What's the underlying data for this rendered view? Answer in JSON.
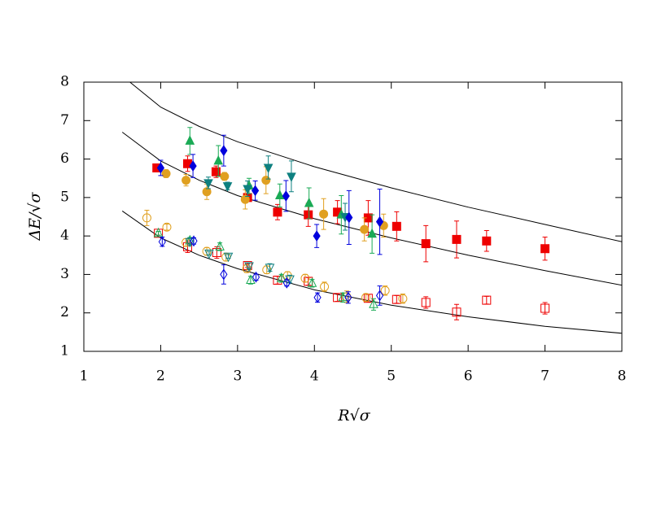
{
  "chart_data": {
    "type": "scatter",
    "x_label": "R√σ",
    "y_label": "ΔE/√σ",
    "xlim": [
      1,
      8
    ],
    "ylim": [
      1,
      8
    ],
    "xticks": [
      1,
      2,
      3,
      4,
      5,
      6,
      7,
      8
    ],
    "yticks": [
      1,
      2,
      3,
      4,
      5,
      6,
      7,
      8
    ],
    "curves": [
      {
        "color": "#000000",
        "x": [
          1.6,
          2,
          2.5,
          3,
          4,
          5,
          6,
          7,
          8
        ],
        "values": [
          8.0,
          7.35,
          6.85,
          6.45,
          5.8,
          5.25,
          4.75,
          4.3,
          3.85
        ]
      },
      {
        "color": "#000000",
        "x": [
          1.5,
          2,
          2.5,
          3,
          4,
          5,
          6,
          7,
          8
        ],
        "values": [
          6.7,
          5.95,
          5.45,
          5.05,
          4.45,
          3.95,
          3.5,
          3.1,
          2.72
        ]
      },
      {
        "color": "#000000",
        "x": [
          1.5,
          2,
          2.5,
          3,
          4,
          5,
          6,
          7,
          8
        ],
        "values": [
          4.65,
          3.95,
          3.5,
          3.15,
          2.6,
          2.2,
          1.9,
          1.65,
          1.47
        ]
      }
    ],
    "series": [
      {
        "color": "#ee0000",
        "marker": "square",
        "filled": true,
        "x": [
          1.95,
          2.35,
          2.72,
          3.13,
          3.52,
          3.92,
          4.3,
          4.7,
          5.07,
          5.45,
          5.85,
          6.24,
          7.0
        ],
        "values": [
          5.77,
          5.88,
          5.67,
          5.0,
          4.62,
          4.55,
          4.62,
          4.47,
          4.25,
          3.8,
          3.91,
          3.87,
          3.67
        ],
        "errors": [
          0.05,
          0.2,
          0.15,
          0.1,
          0.2,
          0.3,
          0.3,
          0.45,
          0.38,
          0.47,
          0.48,
          0.27,
          0.3
        ]
      },
      {
        "color": "#e0a020",
        "marker": "circle",
        "filled": true,
        "x": [
          2.07,
          2.33,
          2.6,
          2.83,
          3.1,
          3.37,
          4.12,
          4.65,
          4.9
        ],
        "values": [
          5.62,
          5.45,
          5.15,
          5.55,
          4.95,
          5.45,
          4.57,
          4.17,
          4.27
        ],
        "errors": [
          0.1,
          0.15,
          0.2,
          0.1,
          0.25,
          0.35,
          0.4,
          0.3,
          0.3
        ]
      },
      {
        "color": "#1aaa55",
        "marker": "triangle-up",
        "filled": true,
        "x": [
          2.38,
          2.75,
          3.15,
          3.55,
          3.93,
          4.35,
          4.75
        ],
        "values": [
          6.47,
          5.95,
          5.3,
          5.05,
          4.85,
          4.55,
          4.05
        ],
        "errors": [
          0.35,
          0.4,
          0.2,
          0.3,
          0.4,
          0.5,
          0.5
        ]
      },
      {
        "color": "#0e8080",
        "marker": "triangle-down",
        "filled": true,
        "x": [
          2.62,
          2.87,
          3.13,
          3.4,
          3.7,
          4.4
        ],
        "values": [
          5.38,
          5.3,
          5.23,
          5.78,
          5.55,
          4.5
        ],
        "errors": [
          0.15,
          0.1,
          0.2,
          0.3,
          0.4,
          0.35
        ]
      },
      {
        "color": "#0000dd",
        "marker": "diamond",
        "filled": true,
        "x": [
          2.0,
          2.42,
          2.82,
          3.23,
          3.63,
          4.03,
          4.45,
          4.85
        ],
        "values": [
          5.77,
          5.82,
          6.22,
          5.18,
          5.04,
          4.0,
          4.48,
          4.37
        ],
        "errors": [
          0.2,
          0.3,
          0.4,
          0.25,
          0.4,
          0.3,
          0.7,
          0.85
        ]
      },
      {
        "color": "#ee0000",
        "marker": "square",
        "filled": false,
        "x": [
          1.97,
          2.35,
          2.73,
          3.13,
          3.52,
          3.92,
          4.3,
          4.7,
          5.07,
          5.45,
          5.85,
          6.24,
          7.0
        ],
        "values": [
          4.07,
          3.72,
          3.57,
          3.23,
          2.85,
          2.82,
          2.4,
          2.38,
          2.35,
          2.27,
          2.02,
          2.33,
          2.12
        ],
        "errors": [
          0.05,
          0.15,
          0.15,
          0.05,
          0.1,
          0.1,
          0.1,
          0.1,
          0.1,
          0.15,
          0.2,
          0.1,
          0.15
        ]
      },
      {
        "color": "#e0a020",
        "marker": "circle",
        "filled": false,
        "x": [
          1.82,
          2.08,
          2.33,
          2.6,
          2.85,
          3.12,
          3.38,
          3.65,
          3.88,
          4.13,
          4.42,
          4.67,
          4.92,
          5.15
        ],
        "values": [
          4.47,
          4.23,
          3.83,
          3.6,
          3.45,
          3.15,
          3.12,
          2.97,
          2.9,
          2.68,
          2.42,
          2.4,
          2.58,
          2.37
        ],
        "errors": [
          0.2,
          0.08,
          0.1,
          0.1,
          0.1,
          0.1,
          0.1,
          0.1,
          0.1,
          0.12,
          0.15,
          0.1,
          0.12,
          0.12
        ]
      },
      {
        "color": "#1aaa55",
        "marker": "triangle-up",
        "filled": false,
        "x": [
          1.97,
          2.38,
          2.77,
          3.17,
          3.57,
          3.97,
          4.37,
          4.77
        ],
        "values": [
          4.07,
          3.88,
          3.72,
          2.85,
          2.9,
          2.77,
          2.4,
          2.22
        ],
        "errors": [
          0.05,
          0.08,
          0.1,
          0.1,
          0.1,
          0.1,
          0.12,
          0.15
        ]
      },
      {
        "color": "#0e8080",
        "marker": "triangle-down",
        "filled": false,
        "x": [
          2.38,
          2.63,
          2.88,
          3.15,
          3.42,
          3.68
        ],
        "values": [
          3.85,
          3.55,
          3.47,
          3.22,
          3.18,
          2.88
        ],
        "errors": [
          0.1,
          0.05,
          0.05,
          0.08,
          0.1,
          0.1
        ]
      },
      {
        "color": "#0000dd",
        "marker": "diamond",
        "filled": false,
        "x": [
          2.02,
          2.43,
          2.82,
          3.24,
          3.64,
          4.04,
          4.44,
          4.85
        ],
        "values": [
          3.85,
          3.87,
          3.0,
          2.93,
          2.78,
          2.4,
          2.4,
          2.45
        ],
        "errors": [
          0.12,
          0.08,
          0.25,
          0.08,
          0.08,
          0.12,
          0.15,
          0.25
        ]
      }
    ]
  }
}
